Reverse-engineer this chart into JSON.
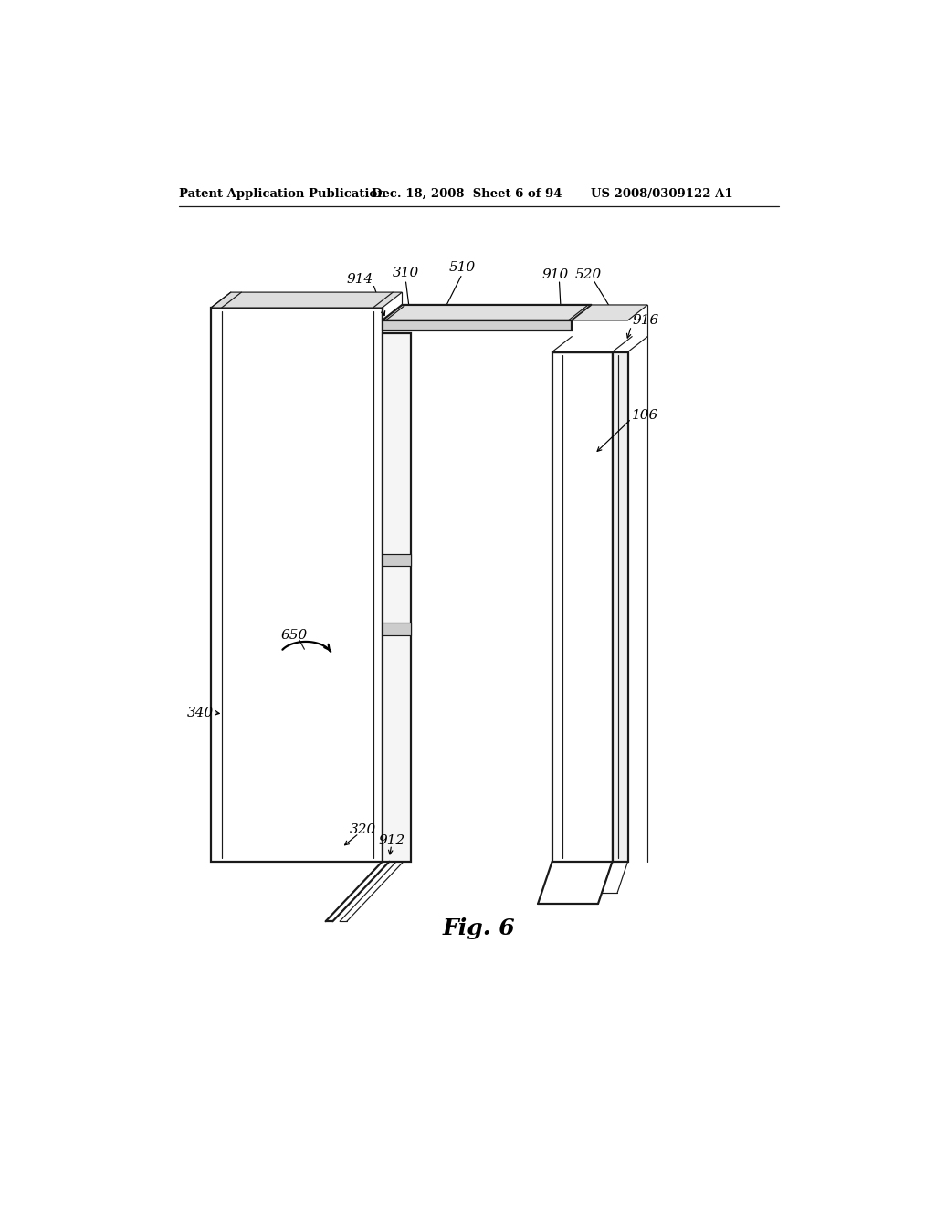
{
  "bg_color": "#ffffff",
  "header_text": "Patent Application Publication",
  "header_date": "Dec. 18, 2008",
  "header_sheet": "Sheet 6 of 94",
  "header_patent": "US 2008/0309122 A1",
  "fig_label": "Fig. 6",
  "lw_main": 1.6,
  "lw_thin": 0.85,
  "line_color": "#1a1a1a"
}
